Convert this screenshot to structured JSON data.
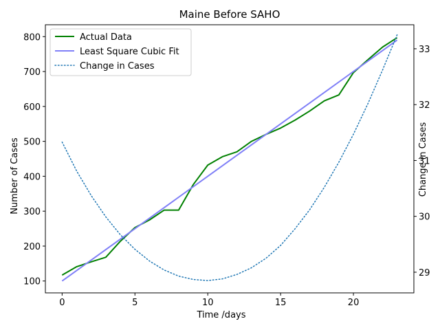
{
  "chart_data": {
    "type": "line",
    "title": "Maine Before SAHO",
    "xlabel": "Time /days",
    "ylabel": "Number of Cases",
    "y2label": "Change in Cases",
    "xlim": [
      -1.15,
      24.15
    ],
    "ylim": [
      66,
      834
    ],
    "y2lim": [
      28.63,
      33.43
    ],
    "x_ticks": [
      0,
      5,
      10,
      15,
      20
    ],
    "y_ticks": [
      100,
      200,
      300,
      400,
      500,
      600,
      700,
      800
    ],
    "y2_ticks": [
      29,
      30,
      31,
      32,
      33
    ],
    "grid": false,
    "legend": "top-left",
    "series": [
      {
        "name": "Actual Data",
        "axis": "left",
        "style": "solid",
        "color": "#008000",
        "x": [
          0,
          1,
          2,
          3,
          4,
          5,
          6,
          7,
          8,
          9,
          10,
          11,
          12,
          13,
          14,
          15,
          16,
          17,
          18,
          19,
          20,
          21,
          22,
          23
        ],
        "values": [
          117,
          141,
          155,
          168,
          214,
          253,
          275,
          303,
          303,
          376,
          432,
          456,
          470,
          500,
          520,
          538,
          561,
          587,
          616,
          633,
          697,
          734,
          770,
          797
        ]
      },
      {
        "name": "Least Square Cubic Fit",
        "axis": "left",
        "style": "solid",
        "color": "#7f7ff7",
        "x": [
          0,
          23
        ],
        "values": [
          100,
          790
        ]
      },
      {
        "name": "Change in Cases",
        "axis": "right",
        "style": "dotted",
        "color": "#1f77b4",
        "x": [
          0,
          1,
          2,
          3,
          4,
          5,
          6,
          7,
          8,
          9,
          10,
          11,
          12,
          13,
          14,
          15,
          16,
          17,
          18,
          19,
          20,
          21,
          22,
          23
        ],
        "values": [
          31.33,
          30.81,
          30.37,
          29.99,
          29.67,
          29.41,
          29.2,
          29.04,
          28.93,
          28.87,
          28.85,
          28.88,
          28.96,
          29.08,
          29.25,
          29.48,
          29.78,
          30.12,
          30.52,
          30.97,
          31.47,
          32.02,
          32.62,
          33.25
        ]
      }
    ]
  }
}
